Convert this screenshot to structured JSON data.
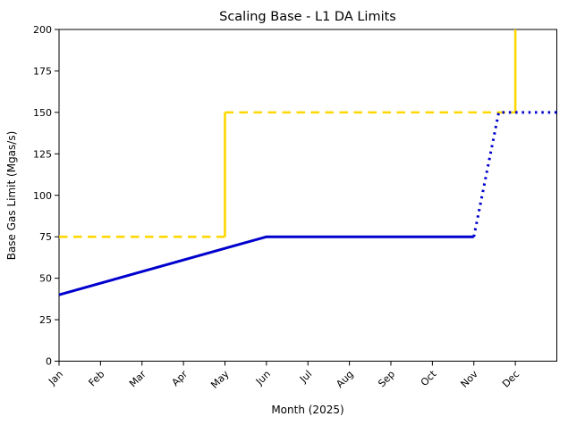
{
  "figure": {
    "title": "Scaling Base - L1 DA Limits",
    "xlabel": "Month (2025)",
    "ylabel": "Base Gas Limit (Mgas/s)"
  },
  "chart_data": {
    "type": "line",
    "title": "Scaling Base - L1 DA Limits",
    "xlabel": "Month (2025)",
    "ylabel": "Base Gas Limit (Mgas/s)",
    "x_tick_labels": [
      "Jan",
      "Feb",
      "Mar",
      "Apr",
      "May",
      "Jun",
      "Jul",
      "Aug",
      "Sep",
      "Oct",
      "Nov",
      "Dec"
    ],
    "x_tick_rotation_deg": 45,
    "x_months_span": 12,
    "yticks": [
      0,
      25,
      50,
      75,
      100,
      125,
      150,
      175,
      200
    ],
    "ylim": [
      0,
      200
    ],
    "grid": false,
    "legend": "none",
    "colors": {
      "base_limit_blue": "#0000cd",
      "da_schedule_gold": "#ffd700"
    },
    "series": [
      {
        "name": "da-limit-schedule-dashed-75",
        "color": "#ffd700",
        "style": "dashed",
        "width": 2.6,
        "points": [
          [
            0,
            75
          ],
          [
            4,
            75
          ]
        ],
        "note": "gold dashed at 75 Mgas/s from Jan through May"
      },
      {
        "name": "da-limit-step-may",
        "color": "#ffd700",
        "style": "solid",
        "width": 2.6,
        "points": [
          [
            4,
            75
          ],
          [
            4,
            150
          ]
        ],
        "note": "gold vertical step at May from 75 to 150"
      },
      {
        "name": "da-limit-schedule-dashed-150",
        "color": "#ffd700",
        "style": "dashed",
        "width": 2.6,
        "points": [
          [
            4,
            150
          ],
          [
            11,
            150
          ]
        ],
        "note": "gold dashed at 150 Mgas/s from May through Dec"
      },
      {
        "name": "da-limit-step-dec",
        "color": "#ffd700",
        "style": "solid",
        "width": 2.6,
        "points": [
          [
            11,
            150
          ],
          [
            11,
            200
          ]
        ],
        "note": "gold vertical step at Dec from 150 to 200 (top of axis)"
      },
      {
        "name": "base-gas-limit-solid",
        "color": "#0000cd",
        "style": "solid",
        "width": 3,
        "points": [
          [
            0,
            40
          ],
          [
            5,
            75
          ],
          [
            10,
            75
          ]
        ],
        "note": "blue solid: 40 at Jan rising linearly to 75 by Jun, flat at 75 through Nov"
      },
      {
        "name": "base-gas-limit-dotted",
        "color": "#0000cd",
        "style": "dotted",
        "width": 3,
        "points": [
          [
            10,
            75
          ],
          [
            10.6,
            150
          ],
          [
            12,
            150
          ]
        ],
        "note": "blue dotted projection: rises from 75 at Nov to 150 by mid/late Nov, flat at 150 to right edge"
      }
    ]
  }
}
